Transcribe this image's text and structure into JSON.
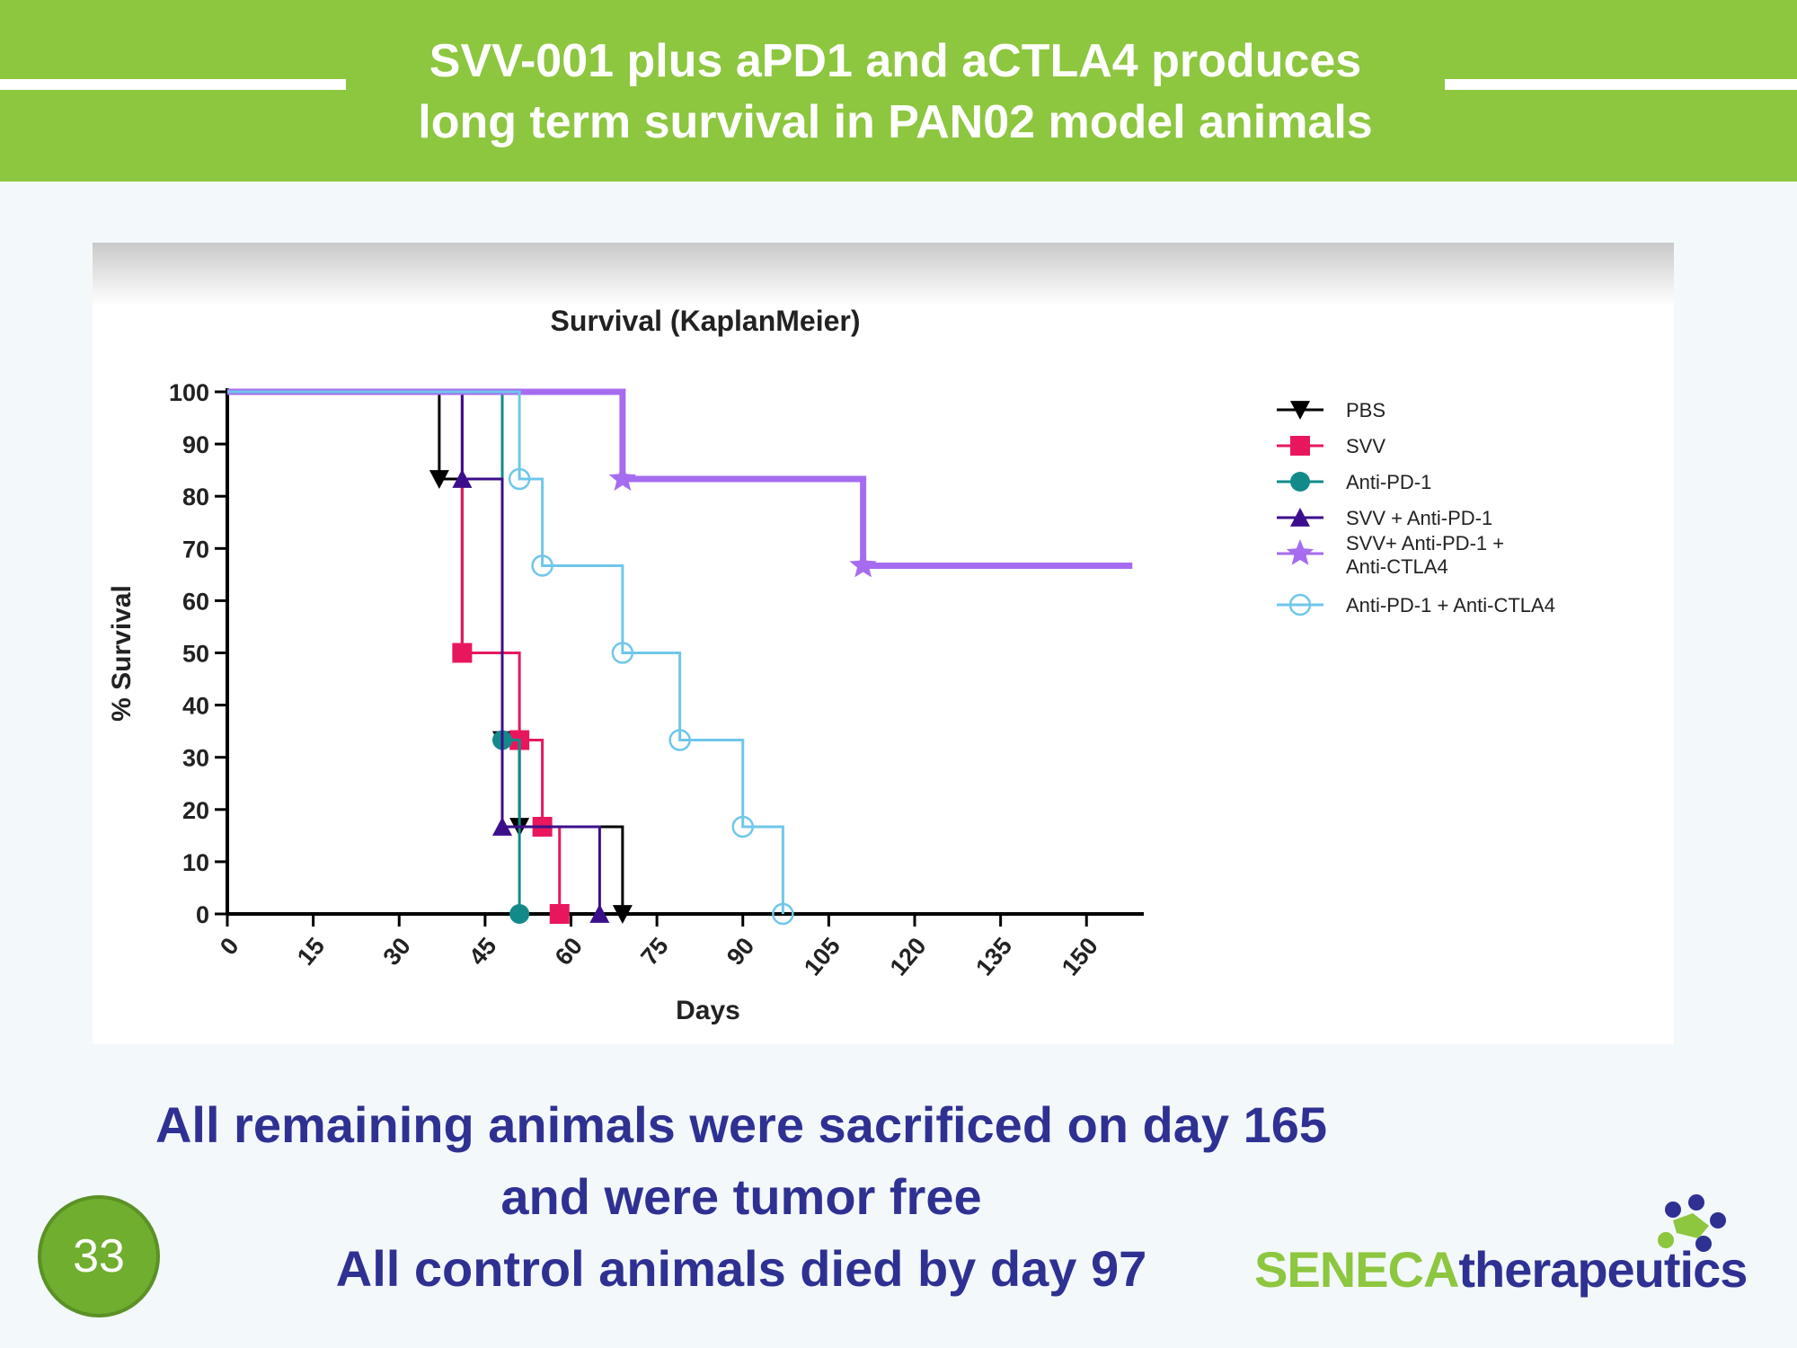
{
  "slide": {
    "title_lines": [
      "SVV-001 plus aPD1 and aCTLA4 produces",
      "long term survival in PAN02 model animals"
    ],
    "caption_lines": [
      "All remaining animals were sacrificed on day 165",
      "and were tumor free",
      "All control animals died by day 97"
    ],
    "page_number": "33",
    "logo": {
      "part1": "SENECA",
      "part2": "therapeutics",
      "icon": "seneca-logo-icon"
    }
  },
  "colors": {
    "header_green": "#8dc63f",
    "caption_blue": "#2e3192"
  },
  "chart_data": {
    "type": "line",
    "subtype": "kaplan-meier-step",
    "title": "Survival (KaplanMeier)",
    "xlabel": "Days",
    "ylabel": "% Survival",
    "xlim": [
      0,
      160
    ],
    "ylim": [
      0,
      100
    ],
    "x_ticks": [
      0,
      15,
      30,
      45,
      60,
      75,
      90,
      105,
      120,
      135,
      150
    ],
    "y_ticks": [
      0,
      10,
      20,
      30,
      40,
      50,
      60,
      70,
      80,
      90,
      100
    ],
    "grid": false,
    "legend_position": "right",
    "series": [
      {
        "name": "PBS",
        "color": "#000000",
        "marker": "triangle-down",
        "width": 3,
        "x": [
          0,
          37,
          41,
          48,
          51,
          69
        ],
        "y": [
          100,
          83.3,
          50,
          33.3,
          16.7,
          0
        ]
      },
      {
        "name": "SVV",
        "color": "#e8175d",
        "marker": "square",
        "width": 3,
        "x": [
          0,
          41,
          51,
          55,
          58
        ],
        "y": [
          100,
          50,
          33.3,
          16.7,
          0
        ]
      },
      {
        "name": "Anti-PD-1",
        "color": "#138a8a",
        "marker": "circle",
        "width": 3,
        "x": [
          0,
          48,
          51
        ],
        "y": [
          100,
          33.3,
          0
        ]
      },
      {
        "name": "SVV + Anti-PD-1",
        "color": "#3b0f8c",
        "marker": "triangle-up",
        "width": 3,
        "x": [
          0,
          41,
          48,
          65
        ],
        "y": [
          100,
          83.3,
          16.7,
          0
        ]
      },
      {
        "name": "SVV+ Anti-PD-1 + Anti-CTLA4",
        "legend_lines": [
          "SVV+ Anti-PD-1 +",
          "Anti-CTLA4"
        ],
        "color": "#a66cf0",
        "marker": "star",
        "width": 7,
        "x": [
          0,
          69,
          111,
          158
        ],
        "y": [
          100,
          83.3,
          66.7,
          66.7
        ],
        "end_marker": false
      },
      {
        "name": "Anti-PD-1 + Anti-CTLA4",
        "color": "#6fc7ea",
        "marker": "open-circle",
        "width": 3,
        "x": [
          0,
          51,
          55,
          69,
          79,
          90,
          97
        ],
        "y": [
          100,
          83.3,
          66.7,
          50,
          33.3,
          16.7,
          0
        ]
      }
    ]
  }
}
